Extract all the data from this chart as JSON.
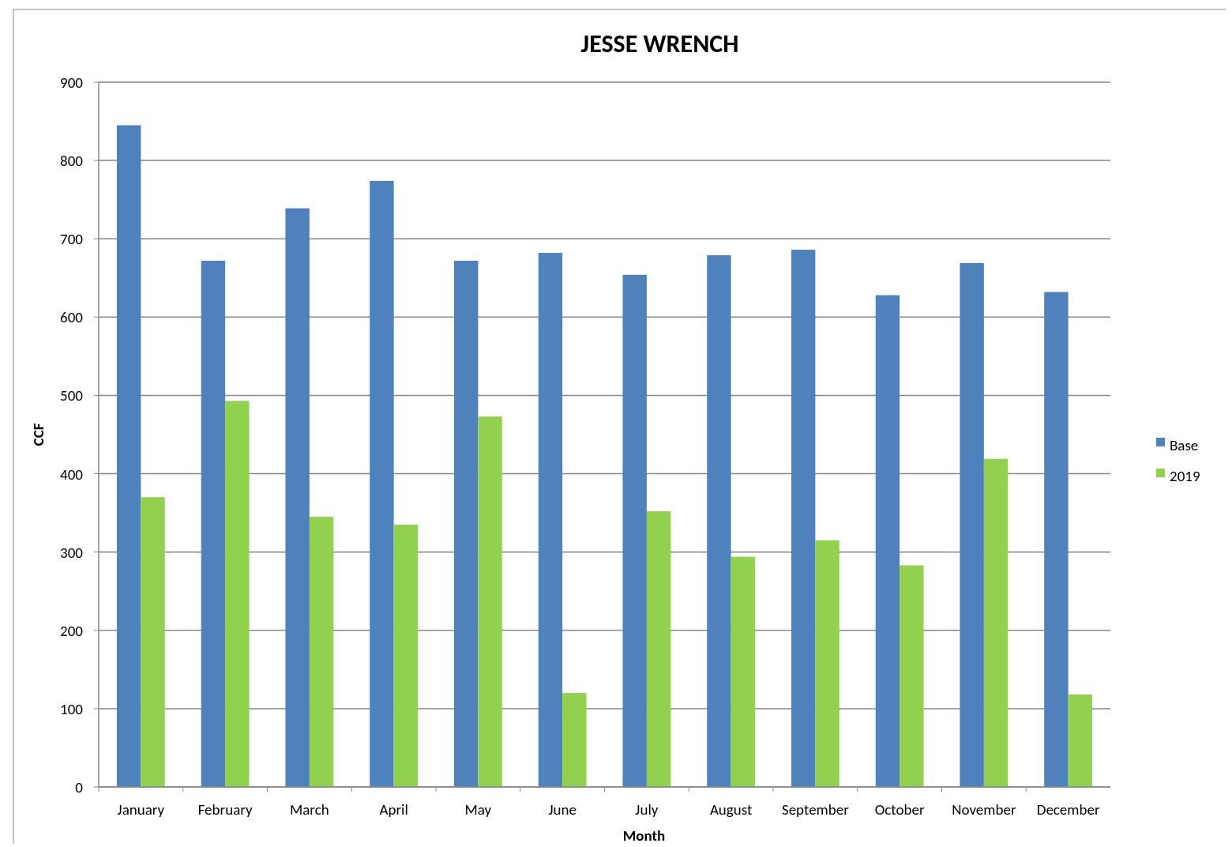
{
  "chart_data": {
    "type": "bar",
    "title": "JESSE WRENCH",
    "xlabel": "Month",
    "ylabel": "CCF",
    "categories": [
      "January",
      "February",
      "March",
      "April",
      "May",
      "June",
      "July",
      "August",
      "September",
      "October",
      "November",
      "December"
    ],
    "series": [
      {
        "name": "Base",
        "color": "#4f81bd",
        "values": [
          845,
          672,
          739,
          774,
          672,
          682,
          654,
          679,
          686,
          628,
          669,
          632
        ]
      },
      {
        "name": "2019",
        "color": "#92d050",
        "values": [
          370,
          493,
          345,
          335,
          473,
          120,
          352,
          294,
          315,
          283,
          419,
          118
        ]
      }
    ],
    "ylim": [
      0,
      900
    ],
    "yticks": [
      0,
      100,
      200,
      300,
      400,
      500,
      600,
      700,
      800,
      900
    ],
    "grid": "y",
    "legend": "right"
  }
}
